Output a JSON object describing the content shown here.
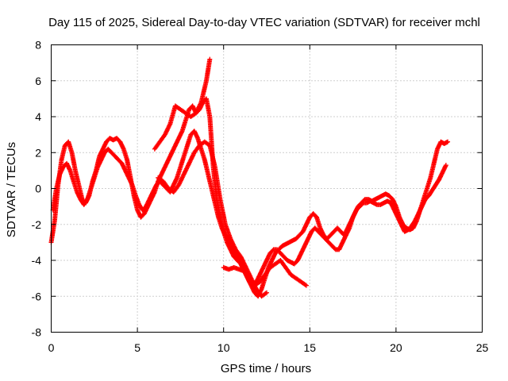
{
  "chart_data": {
    "type": "scatter",
    "title": "Day 115 of 2025, Sidereal Day-to-day VTEC variation (SDTVAR) for receiver mchl",
    "xlabel": "GPS time / hours",
    "ylabel": "SDTVAR / TECUs",
    "xlim": [
      0,
      25
    ],
    "ylim": [
      -8,
      8
    ],
    "xticks": [
      0,
      5,
      10,
      15,
      20,
      25
    ],
    "yticks": [
      -8,
      -6,
      -4,
      -2,
      0,
      2,
      4,
      6,
      8
    ],
    "grid": true,
    "marker": "plus",
    "color": "#ff0000",
    "series": [
      {
        "x": [
          0.0,
          0.2,
          0.4,
          0.6,
          0.8,
          1.0,
          1.2,
          1.4,
          1.6,
          1.8,
          2.0,
          2.2,
          2.4,
          2.6,
          2.8,
          3.0,
          3.2,
          3.4,
          3.6,
          3.8,
          4.0,
          4.2,
          4.4,
          4.6,
          4.8,
          5.0,
          5.2,
          5.4,
          5.6,
          5.8,
          6.0,
          6.2,
          6.4,
          6.6,
          6.8,
          7.0,
          7.2,
          7.4,
          7.6,
          7.8,
          8.0,
          8.2,
          8.4,
          8.6,
          8.8,
          9.0,
          9.2,
          9.4,
          9.6,
          9.8,
          10.0,
          10.2,
          10.4,
          10.6,
          10.8,
          11.0,
          11.2,
          11.4,
          11.6,
          11.8,
          12.0,
          12.2,
          12.4,
          12.6,
          12.8,
          13.0,
          13.2,
          13.4,
          13.6,
          13.8,
          14.0,
          14.2,
          14.4,
          14.6,
          14.8,
          15.0,
          15.2,
          15.4,
          15.6,
          15.8,
          16.0,
          16.2,
          16.4,
          16.6,
          16.8,
          17.0,
          17.2,
          17.4,
          17.6,
          17.8,
          18.0,
          18.2,
          18.4,
          18.6,
          18.8,
          19.0,
          19.2,
          19.4,
          19.6,
          19.8,
          20.0,
          20.2,
          20.4,
          20.6,
          20.8,
          21.0,
          21.2,
          21.4,
          21.6,
          21.8,
          22.0,
          22.2,
          22.4,
          22.6,
          22.8,
          23.0
        ],
        "y": [
          -3.0,
          -1.8,
          0.2,
          1.6,
          2.4,
          2.6,
          2.0,
          1.0,
          0.2,
          -0.6,
          -0.8,
          -0.4,
          0.4,
          1.0,
          1.8,
          2.2,
          2.6,
          2.8,
          2.7,
          2.8,
          2.6,
          2.2,
          1.6,
          0.6,
          -0.4,
          -1.2,
          -1.6,
          -1.4,
          -1.0,
          -0.6,
          -0.2,
          0.4,
          0.8,
          1.2,
          1.6,
          2.0,
          2.4,
          2.8,
          3.2,
          3.8,
          4.4,
          4.6,
          4.2,
          4.4,
          4.8,
          5.0,
          4.0,
          1.2,
          -0.6,
          -1.6,
          -2.4,
          -3.0,
          -3.4,
          -3.8,
          -4.0,
          -4.2,
          -4.6,
          -5.0,
          -5.4,
          -5.8,
          -6.0,
          -5.6,
          -5.0,
          -4.4,
          -4.0,
          -3.6,
          -3.4,
          -3.2,
          -3.1,
          -3.0,
          -2.9,
          -2.8,
          -2.6,
          -2.4,
          -2.0,
          -1.6,
          -1.4,
          -1.6,
          -2.2,
          -2.6,
          -2.8,
          -2.6,
          -2.4,
          -2.2,
          -2.4,
          -2.6,
          -2.2,
          -1.8,
          -1.4,
          -1.0,
          -0.8,
          -0.6,
          -0.6,
          -0.7,
          -0.6,
          -0.5,
          -0.4,
          -0.3,
          -0.4,
          -0.6,
          -1.0,
          -1.6,
          -2.0,
          -2.2,
          -2.3,
          -2.2,
          -1.8,
          -1.2,
          -0.6,
          0.0,
          0.6,
          1.4,
          2.2,
          2.6,
          2.5,
          2.6
        ]
      },
      {
        "x": [
          0.1,
          0.3,
          0.5,
          0.7,
          0.9,
          1.1,
          1.3,
          1.5,
          1.7,
          1.9,
          2.1,
          2.3,
          2.5,
          2.7,
          2.9,
          3.1,
          3.3,
          3.5,
          3.7,
          3.9,
          4.1,
          4.3,
          4.5,
          4.7,
          4.9,
          5.1,
          5.3,
          5.5,
          5.7,
          5.9,
          6.1,
          6.3,
          6.5,
          6.7,
          6.9,
          7.1,
          7.3,
          7.5,
          7.7,
          7.9,
          8.1,
          8.3,
          8.5,
          8.7,
          8.9,
          9.1,
          9.3,
          9.5,
          9.7,
          9.9,
          10.1,
          10.3,
          10.5,
          10.7,
          10.9,
          11.1,
          11.3,
          11.5,
          11.7,
          11.9,
          12.1,
          12.3,
          12.5,
          12.7,
          12.9,
          13.1,
          13.3,
          13.5,
          13.7,
          13.9,
          14.1,
          14.3,
          14.5,
          14.7,
          14.9,
          15.1,
          15.3,
          15.5,
          15.7,
          15.9,
          16.1,
          16.3,
          16.5,
          16.7,
          16.9,
          17.1,
          17.3,
          17.5,
          17.7,
          17.9,
          18.1,
          18.3,
          18.5,
          18.7,
          18.9,
          19.1,
          19.3,
          19.5,
          19.7,
          19.9,
          20.1,
          20.3,
          20.5,
          20.7,
          20.9,
          21.1,
          21.3,
          21.5,
          21.7,
          21.9,
          22.1,
          22.3,
          22.5,
          22.7,
          22.9
        ],
        "y": [
          -1.2,
          0.0,
          0.8,
          1.2,
          1.4,
          1.0,
          0.4,
          -0.2,
          -0.6,
          -0.9,
          -0.6,
          0.0,
          0.6,
          1.2,
          1.6,
          2.0,
          2.2,
          2.0,
          1.8,
          1.6,
          1.4,
          1.0,
          0.6,
          0.2,
          -0.4,
          -0.9,
          -1.2,
          -1.0,
          -0.6,
          -0.2,
          0.2,
          0.4,
          0.2,
          0.0,
          -0.2,
          0.2,
          0.6,
          1.2,
          1.8,
          2.4,
          3.0,
          3.2,
          2.8,
          2.2,
          1.6,
          0.8,
          0.0,
          -0.8,
          -1.6,
          -2.2,
          -2.6,
          -2.8,
          -3.2,
          -3.6,
          -4.0,
          -4.4,
          -4.8,
          -5.2,
          -5.4,
          -5.2,
          -4.8,
          -4.4,
          -4.0,
          -3.6,
          -3.4,
          -3.4,
          -3.6,
          -3.8,
          -4.0,
          -4.1,
          -4.2,
          -4.0,
          -3.6,
          -3.2,
          -2.8,
          -2.4,
          -2.2,
          -2.4,
          -2.6,
          -2.8,
          -3.0,
          -3.2,
          -3.4,
          -3.4,
          -3.0,
          -2.6,
          -2.2,
          -1.6,
          -1.2,
          -1.0,
          -0.8,
          -0.8,
          -0.7,
          -0.8,
          -0.9,
          -0.9,
          -0.8,
          -0.7,
          -0.8,
          -1.2,
          -1.6,
          -2.0,
          -2.4,
          -2.3,
          -2.1,
          -1.8,
          -1.4,
          -1.0,
          -0.6,
          -0.4,
          -0.1,
          0.2,
          0.5,
          0.9,
          1.3
        ]
      },
      {
        "x": [
          6.0,
          6.3,
          6.6,
          6.9,
          7.2,
          7.5,
          7.8,
          8.1,
          8.4,
          8.7,
          9.0,
          9.2
        ],
        "y": [
          2.2,
          2.6,
          3.0,
          3.6,
          4.6,
          4.4,
          4.2,
          4.0,
          4.2,
          4.8,
          6.0,
          7.2
        ]
      },
      {
        "x": [
          6.2,
          6.5,
          6.8,
          7.1,
          7.4,
          7.7,
          8.0,
          8.3,
          8.6,
          8.9,
          9.2,
          9.5,
          9.8,
          10.1,
          10.4,
          10.7,
          11.0,
          11.3,
          11.6,
          11.9,
          12.2,
          12.5
        ],
        "y": [
          0.6,
          0.4,
          0.0,
          -0.2,
          0.2,
          0.8,
          1.4,
          2.0,
          2.4,
          2.6,
          2.4,
          1.2,
          -0.6,
          -2.0,
          -2.8,
          -3.4,
          -3.8,
          -4.4,
          -5.0,
          -5.6,
          -6.0,
          -5.8
        ]
      },
      {
        "x": [
          10.0,
          10.3,
          10.6,
          10.9,
          11.2,
          11.5,
          11.8,
          12.1,
          12.4,
          12.7,
          13.0,
          13.3,
          13.6,
          13.9,
          14.2,
          14.5,
          14.8
        ],
        "y": [
          -4.4,
          -4.5,
          -4.4,
          -4.5,
          -4.6,
          -5.0,
          -5.4,
          -5.2,
          -4.8,
          -4.4,
          -4.2,
          -4.0,
          -4.4,
          -4.8,
          -5.0,
          -5.2,
          -5.4
        ]
      }
    ]
  }
}
